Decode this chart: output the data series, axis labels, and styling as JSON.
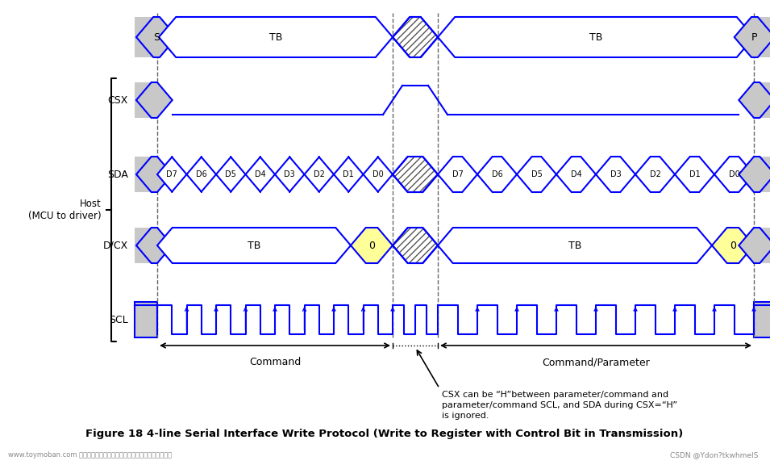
{
  "title": "Figure 18 4-line Serial Interface Write Protocol (Write to Register with Control Bit in Transmission)",
  "bg_color": "#ffffff",
  "signal_color": "#0000ff",
  "gray_fill": "#c8c8c8",
  "yellow_fill": "#ffff99",
  "watermark": "www.toymoban.com 网络图片仅供展示，非存储，如有侵权请联系删除。",
  "watermark2": "CSDN @Ydon?tkwhmelS",
  "note_line1": "CSX can be “H”between parameter/command and",
  "note_line2": "parameter/command SCL, and SDA during CSX=“H”",
  "note_line3": "is ignored.",
  "sda_bits": [
    "D7",
    "D6",
    "D5",
    "D4",
    "D3",
    "D2",
    "D1",
    "D0"
  ]
}
